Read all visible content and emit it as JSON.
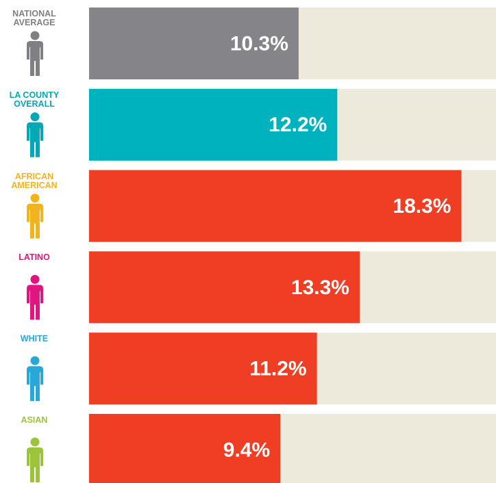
{
  "chart_data": {
    "type": "hbar",
    "categories": [
      "NATIONAL AVERAGE",
      "LA COUNTY OVERALL",
      "AFRICAN AMERICAN",
      "LATINO",
      "WHITE",
      "ASIAN"
    ],
    "values": [
      10.3,
      12.2,
      18.3,
      13.3,
      11.2,
      9.4
    ],
    "value_labels": [
      "10.3%",
      "12.2%",
      "18.3%",
      "13.3%",
      "11.2%",
      "9.4%"
    ],
    "bar_colors": [
      "#858589",
      "#00b2bd",
      "#ef3e23",
      "#ef3e23",
      "#ef3e23",
      "#ef3e23"
    ],
    "label_colors": [
      "#808084",
      "#00a9b5",
      "#f2b41c",
      "#e0157f",
      "#27a8d8",
      "#9cc43a"
    ],
    "track_color": "#eeeadb",
    "xlim": [
      0,
      20
    ]
  }
}
